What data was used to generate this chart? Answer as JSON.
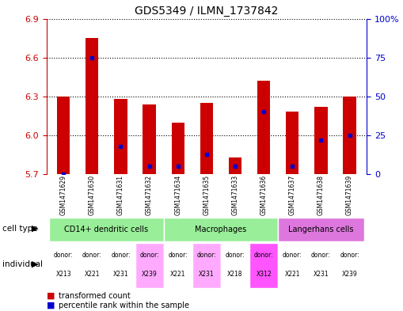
{
  "title": "GDS5349 / ILMN_1737842",
  "samples": [
    "GSM1471629",
    "GSM1471630",
    "GSM1471631",
    "GSM1471632",
    "GSM1471634",
    "GSM1471635",
    "GSM1471633",
    "GSM1471636",
    "GSM1471637",
    "GSM1471638",
    "GSM1471639"
  ],
  "transformed_count": [
    6.3,
    6.75,
    6.28,
    6.24,
    6.1,
    6.25,
    5.83,
    6.42,
    6.18,
    6.22,
    6.3
  ],
  "percentile_rank": [
    0.0,
    75.0,
    18.0,
    5.0,
    5.0,
    13.0,
    5.0,
    40.0,
    5.0,
    22.0,
    25.0
  ],
  "ymin": 5.7,
  "ymax": 6.9,
  "yticks_left": [
    5.7,
    6.0,
    6.3,
    6.6,
    6.9
  ],
  "yticks_right": [
    0,
    25,
    50,
    75,
    100
  ],
  "bar_color": "#cc0000",
  "marker_color": "#0000cc",
  "cell_types": [
    {
      "label": "CD14+ dendritic cells",
      "start": 0,
      "end": 4,
      "color": "#99ee99"
    },
    {
      "label": "Macrophages",
      "start": 4,
      "end": 8,
      "color": "#99ee99"
    },
    {
      "label": "Langerhans cells",
      "start": 8,
      "end": 11,
      "color": "#dd77dd"
    }
  ],
  "individuals": [
    "X213",
    "X221",
    "X231",
    "X239",
    "X221",
    "X231",
    "X218",
    "X312",
    "X221",
    "X231",
    "X239"
  ],
  "individual_colors": [
    "#ffffff",
    "#ffffff",
    "#ffffff",
    "#ffaaff",
    "#ffffff",
    "#ffaaff",
    "#ffffff",
    "#ff55ff",
    "#ffffff",
    "#ffffff",
    "#ffffff"
  ],
  "bg_color": "#ffffff",
  "sample_bg_color": "#cccccc"
}
